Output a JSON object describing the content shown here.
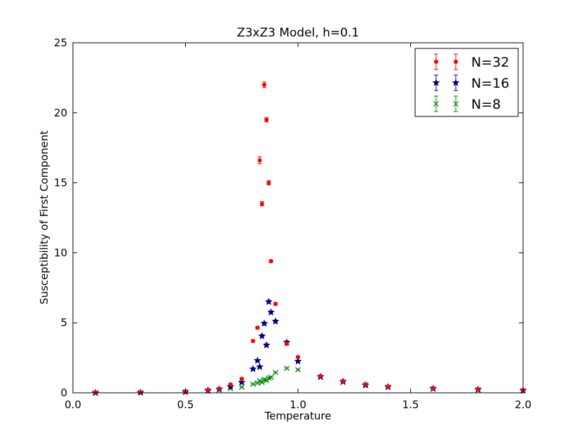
{
  "chart_data": {
    "type": "scatter",
    "title": "Z3xZ3 Model, h=0.1",
    "xlabel": "Temperature",
    "ylabel": "Susceptibility of First Component",
    "xlim": [
      0.0,
      2.0
    ],
    "ylim": [
      0,
      25
    ],
    "xticks": [
      "0.0",
      "0.5",
      "1.0",
      "1.5",
      "2.0"
    ],
    "yticks": [
      "0",
      "5",
      "10",
      "15",
      "20",
      "25"
    ],
    "grid": false,
    "legend_position": "top-right",
    "series": [
      {
        "name": "N=32",
        "color": "#ff0000",
        "marker": "circle",
        "points": [
          {
            "x": 0.1,
            "y": 0.0,
            "err": 0.05
          },
          {
            "x": 0.3,
            "y": 0.03,
            "err": 0.05
          },
          {
            "x": 0.5,
            "y": 0.08,
            "err": 0.05
          },
          {
            "x": 0.6,
            "y": 0.2,
            "err": 0.05
          },
          {
            "x": 0.65,
            "y": 0.3,
            "err": 0.05
          },
          {
            "x": 0.7,
            "y": 0.6,
            "err": 0.07
          },
          {
            "x": 0.75,
            "y": 1.0,
            "err": 0.08
          },
          {
            "x": 0.8,
            "y": 3.7,
            "err": 0.08
          },
          {
            "x": 0.82,
            "y": 4.65,
            "err": 0.1
          },
          {
            "x": 0.83,
            "y": 16.6,
            "err": 0.25
          },
          {
            "x": 0.84,
            "y": 13.5,
            "err": 0.15
          },
          {
            "x": 0.85,
            "y": 22.0,
            "err": 0.2
          },
          {
            "x": 0.86,
            "y": 19.5,
            "err": 0.15
          },
          {
            "x": 0.87,
            "y": 15.0,
            "err": 0.15
          },
          {
            "x": 0.88,
            "y": 9.4,
            "err": 0.1
          },
          {
            "x": 0.9,
            "y": 6.35,
            "err": 0.1
          },
          {
            "x": 0.95,
            "y": 3.5,
            "err": 0.1
          },
          {
            "x": 1.0,
            "y": 2.55,
            "err": 0.08
          },
          {
            "x": 1.1,
            "y": 1.2,
            "err": 0.06
          },
          {
            "x": 1.2,
            "y": 0.85,
            "err": 0.05
          },
          {
            "x": 1.3,
            "y": 0.6,
            "err": 0.05
          },
          {
            "x": 1.4,
            "y": 0.45,
            "err": 0.05
          },
          {
            "x": 1.6,
            "y": 0.32,
            "err": 0.04
          },
          {
            "x": 1.8,
            "y": 0.25,
            "err": 0.04
          },
          {
            "x": 2.0,
            "y": 0.18,
            "err": 0.04
          }
        ]
      },
      {
        "name": "N=16",
        "color": "#000080",
        "marker": "star",
        "points": [
          {
            "x": 0.1,
            "y": 0.0,
            "err": 0.05
          },
          {
            "x": 0.3,
            "y": 0.02,
            "err": 0.05
          },
          {
            "x": 0.5,
            "y": 0.07,
            "err": 0.05
          },
          {
            "x": 0.6,
            "y": 0.17,
            "err": 0.05
          },
          {
            "x": 0.65,
            "y": 0.25,
            "err": 0.05
          },
          {
            "x": 0.7,
            "y": 0.45,
            "err": 0.05
          },
          {
            "x": 0.75,
            "y": 0.75,
            "err": 0.06
          },
          {
            "x": 0.8,
            "y": 1.7,
            "err": 0.07
          },
          {
            "x": 0.82,
            "y": 2.3,
            "err": 0.08
          },
          {
            "x": 0.83,
            "y": 1.85,
            "err": 0.07
          },
          {
            "x": 0.84,
            "y": 4.05,
            "err": 0.1
          },
          {
            "x": 0.85,
            "y": 4.95,
            "err": 0.1
          },
          {
            "x": 0.86,
            "y": 3.4,
            "err": 0.1
          },
          {
            "x": 0.87,
            "y": 6.5,
            "err": 0.1
          },
          {
            "x": 0.88,
            "y": 5.75,
            "err": 0.1
          },
          {
            "x": 0.9,
            "y": 5.1,
            "err": 0.1
          },
          {
            "x": 0.95,
            "y": 3.6,
            "err": 0.1
          },
          {
            "x": 1.0,
            "y": 2.25,
            "err": 0.08
          },
          {
            "x": 1.1,
            "y": 1.15,
            "err": 0.06
          },
          {
            "x": 1.2,
            "y": 0.8,
            "err": 0.05
          },
          {
            "x": 1.3,
            "y": 0.55,
            "err": 0.05
          },
          {
            "x": 1.4,
            "y": 0.42,
            "err": 0.05
          },
          {
            "x": 1.6,
            "y": 0.3,
            "err": 0.04
          },
          {
            "x": 1.8,
            "y": 0.23,
            "err": 0.04
          },
          {
            "x": 2.0,
            "y": 0.16,
            "err": 0.04
          }
        ]
      },
      {
        "name": "N=8",
        "color": "#008000",
        "marker": "x",
        "points": [
          {
            "x": 0.1,
            "y": 0.0,
            "err": 0.05
          },
          {
            "x": 0.3,
            "y": 0.02,
            "err": 0.05
          },
          {
            "x": 0.5,
            "y": 0.06,
            "err": 0.05
          },
          {
            "x": 0.6,
            "y": 0.13,
            "err": 0.05
          },
          {
            "x": 0.65,
            "y": 0.2,
            "err": 0.05
          },
          {
            "x": 0.7,
            "y": 0.3,
            "err": 0.05
          },
          {
            "x": 0.75,
            "y": 0.4,
            "err": 0.05
          },
          {
            "x": 0.8,
            "y": 0.62,
            "err": 0.05
          },
          {
            "x": 0.82,
            "y": 0.7,
            "err": 0.05
          },
          {
            "x": 0.83,
            "y": 0.85,
            "err": 0.05
          },
          {
            "x": 0.84,
            "y": 0.75,
            "err": 0.05
          },
          {
            "x": 0.85,
            "y": 0.95,
            "err": 0.05
          },
          {
            "x": 0.86,
            "y": 0.88,
            "err": 0.05
          },
          {
            "x": 0.87,
            "y": 1.05,
            "err": 0.05
          },
          {
            "x": 0.88,
            "y": 1.1,
            "err": 0.05
          },
          {
            "x": 0.9,
            "y": 1.45,
            "err": 0.06
          },
          {
            "x": 0.95,
            "y": 1.75,
            "err": 0.06
          },
          {
            "x": 1.0,
            "y": 1.65,
            "err": 0.06
          },
          {
            "x": 1.1,
            "y": 1.1,
            "err": 0.05
          },
          {
            "x": 1.2,
            "y": 0.75,
            "err": 0.05
          },
          {
            "x": 1.3,
            "y": 0.55,
            "err": 0.05
          },
          {
            "x": 1.4,
            "y": 0.4,
            "err": 0.05
          },
          {
            "x": 1.6,
            "y": 0.28,
            "err": 0.04
          },
          {
            "x": 1.8,
            "y": 0.22,
            "err": 0.04
          },
          {
            "x": 2.0,
            "y": 0.15,
            "err": 0.04
          }
        ]
      }
    ]
  }
}
